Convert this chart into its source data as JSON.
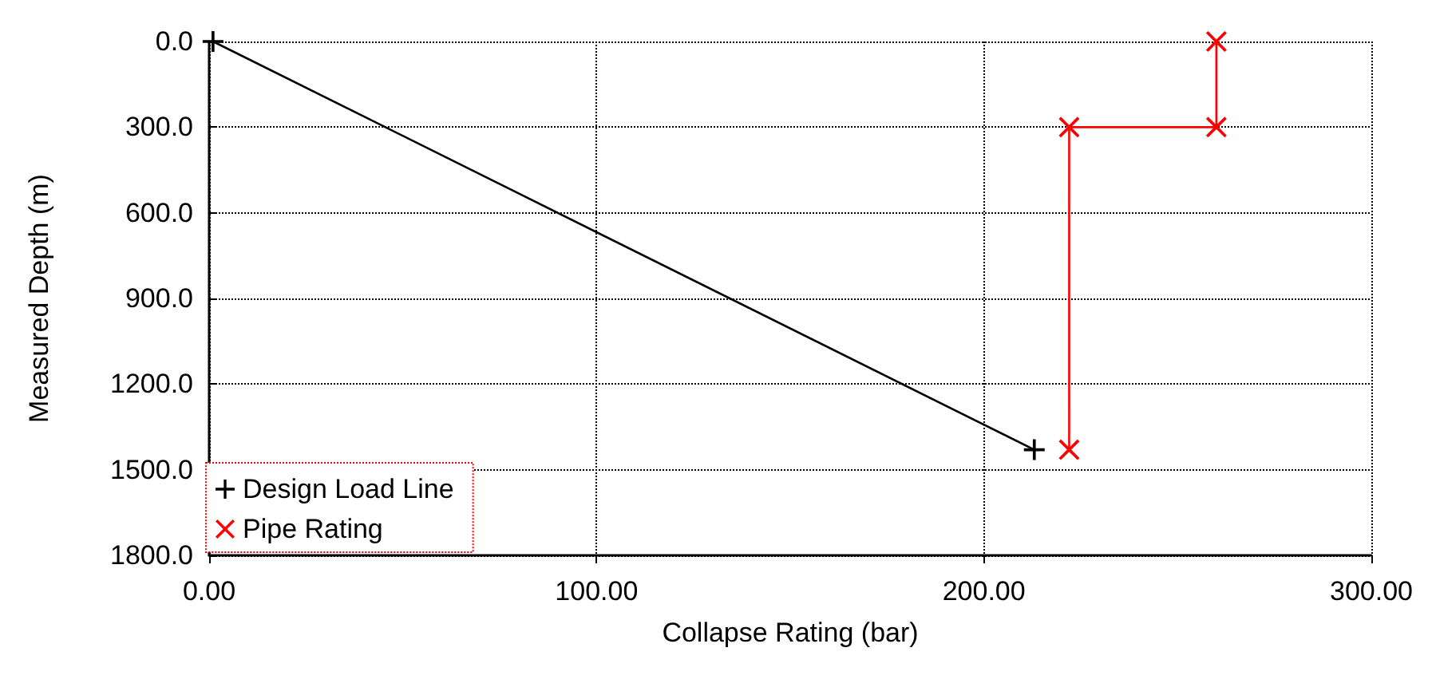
{
  "chart_data": {
    "type": "line",
    "xlabel": "Collapse Rating (bar)",
    "ylabel": "Measured Depth (m)",
    "series": [
      {
        "name": "Design Load Line",
        "color": "#000000",
        "marker": "cross",
        "x": [
          1,
          213
        ],
        "values": [
          0,
          1430
        ]
      },
      {
        "name": "Pipe Rating",
        "color": "#ff0000",
        "marker": "x",
        "x": [
          260,
          260,
          222,
          222
        ],
        "values": [
          0,
          300,
          300,
          1430
        ]
      }
    ],
    "xlim": [
      0,
      300
    ],
    "xticks": [
      {
        "value": 0,
        "label": "0.00"
      },
      {
        "value": 100,
        "label": "100.00"
      },
      {
        "value": 200,
        "label": "200.00"
      },
      {
        "value": 300,
        "label": "300.00"
      }
    ],
    "ylim": [
      1800,
      0
    ],
    "yticks": [
      {
        "value": 0,
        "label": "0.0"
      },
      {
        "value": 300,
        "label": "300.0"
      },
      {
        "value": 600,
        "label": "600.0"
      },
      {
        "value": 900,
        "label": "900.0"
      },
      {
        "value": 1200,
        "label": "1200.0"
      },
      {
        "value": 1500,
        "label": "1500.0"
      },
      {
        "value": 1800,
        "label": "1800.0"
      }
    ],
    "grid": true,
    "legend": "bottom left",
    "line_style": "solid"
  }
}
